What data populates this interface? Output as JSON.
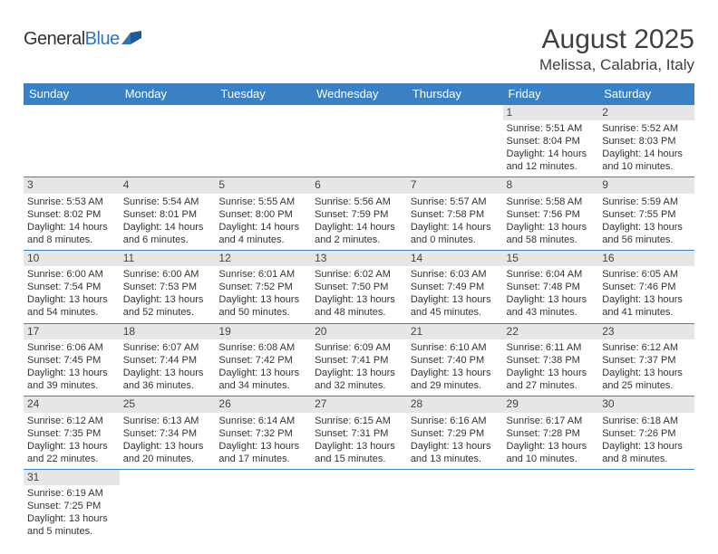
{
  "logo": {
    "text_part1": "General",
    "text_part2": "Blue"
  },
  "title": {
    "month_year": "August 2025",
    "location": "Melissa, Calabria, Italy"
  },
  "colors": {
    "header_bg": "#3a81c3",
    "header_text": "#ffffff",
    "daynum_bg": "#e6e6e6",
    "row_divider": "#3a81c3",
    "body_text": "#333333",
    "logo_blue": "#2f75b5"
  },
  "day_headers": [
    "Sunday",
    "Monday",
    "Tuesday",
    "Wednesday",
    "Thursday",
    "Friday",
    "Saturday"
  ],
  "weeks": [
    [
      null,
      null,
      null,
      null,
      null,
      {
        "num": "1",
        "sunrise": "Sunrise: 5:51 AM",
        "sunset": "Sunset: 8:04 PM",
        "daylight1": "Daylight: 14 hours",
        "daylight2": "and 12 minutes."
      },
      {
        "num": "2",
        "sunrise": "Sunrise: 5:52 AM",
        "sunset": "Sunset: 8:03 PM",
        "daylight1": "Daylight: 14 hours",
        "daylight2": "and 10 minutes."
      }
    ],
    [
      {
        "num": "3",
        "sunrise": "Sunrise: 5:53 AM",
        "sunset": "Sunset: 8:02 PM",
        "daylight1": "Daylight: 14 hours",
        "daylight2": "and 8 minutes."
      },
      {
        "num": "4",
        "sunrise": "Sunrise: 5:54 AM",
        "sunset": "Sunset: 8:01 PM",
        "daylight1": "Daylight: 14 hours",
        "daylight2": "and 6 minutes."
      },
      {
        "num": "5",
        "sunrise": "Sunrise: 5:55 AM",
        "sunset": "Sunset: 8:00 PM",
        "daylight1": "Daylight: 14 hours",
        "daylight2": "and 4 minutes."
      },
      {
        "num": "6",
        "sunrise": "Sunrise: 5:56 AM",
        "sunset": "Sunset: 7:59 PM",
        "daylight1": "Daylight: 14 hours",
        "daylight2": "and 2 minutes."
      },
      {
        "num": "7",
        "sunrise": "Sunrise: 5:57 AM",
        "sunset": "Sunset: 7:58 PM",
        "daylight1": "Daylight: 14 hours",
        "daylight2": "and 0 minutes."
      },
      {
        "num": "8",
        "sunrise": "Sunrise: 5:58 AM",
        "sunset": "Sunset: 7:56 PM",
        "daylight1": "Daylight: 13 hours",
        "daylight2": "and 58 minutes."
      },
      {
        "num": "9",
        "sunrise": "Sunrise: 5:59 AM",
        "sunset": "Sunset: 7:55 PM",
        "daylight1": "Daylight: 13 hours",
        "daylight2": "and 56 minutes."
      }
    ],
    [
      {
        "num": "10",
        "sunrise": "Sunrise: 6:00 AM",
        "sunset": "Sunset: 7:54 PM",
        "daylight1": "Daylight: 13 hours",
        "daylight2": "and 54 minutes."
      },
      {
        "num": "11",
        "sunrise": "Sunrise: 6:00 AM",
        "sunset": "Sunset: 7:53 PM",
        "daylight1": "Daylight: 13 hours",
        "daylight2": "and 52 minutes."
      },
      {
        "num": "12",
        "sunrise": "Sunrise: 6:01 AM",
        "sunset": "Sunset: 7:52 PM",
        "daylight1": "Daylight: 13 hours",
        "daylight2": "and 50 minutes."
      },
      {
        "num": "13",
        "sunrise": "Sunrise: 6:02 AM",
        "sunset": "Sunset: 7:50 PM",
        "daylight1": "Daylight: 13 hours",
        "daylight2": "and 48 minutes."
      },
      {
        "num": "14",
        "sunrise": "Sunrise: 6:03 AM",
        "sunset": "Sunset: 7:49 PM",
        "daylight1": "Daylight: 13 hours",
        "daylight2": "and 45 minutes."
      },
      {
        "num": "15",
        "sunrise": "Sunrise: 6:04 AM",
        "sunset": "Sunset: 7:48 PM",
        "daylight1": "Daylight: 13 hours",
        "daylight2": "and 43 minutes."
      },
      {
        "num": "16",
        "sunrise": "Sunrise: 6:05 AM",
        "sunset": "Sunset: 7:46 PM",
        "daylight1": "Daylight: 13 hours",
        "daylight2": "and 41 minutes."
      }
    ],
    [
      {
        "num": "17",
        "sunrise": "Sunrise: 6:06 AM",
        "sunset": "Sunset: 7:45 PM",
        "daylight1": "Daylight: 13 hours",
        "daylight2": "and 39 minutes."
      },
      {
        "num": "18",
        "sunrise": "Sunrise: 6:07 AM",
        "sunset": "Sunset: 7:44 PM",
        "daylight1": "Daylight: 13 hours",
        "daylight2": "and 36 minutes."
      },
      {
        "num": "19",
        "sunrise": "Sunrise: 6:08 AM",
        "sunset": "Sunset: 7:42 PM",
        "daylight1": "Daylight: 13 hours",
        "daylight2": "and 34 minutes."
      },
      {
        "num": "20",
        "sunrise": "Sunrise: 6:09 AM",
        "sunset": "Sunset: 7:41 PM",
        "daylight1": "Daylight: 13 hours",
        "daylight2": "and 32 minutes."
      },
      {
        "num": "21",
        "sunrise": "Sunrise: 6:10 AM",
        "sunset": "Sunset: 7:40 PM",
        "daylight1": "Daylight: 13 hours",
        "daylight2": "and 29 minutes."
      },
      {
        "num": "22",
        "sunrise": "Sunrise: 6:11 AM",
        "sunset": "Sunset: 7:38 PM",
        "daylight1": "Daylight: 13 hours",
        "daylight2": "and 27 minutes."
      },
      {
        "num": "23",
        "sunrise": "Sunrise: 6:12 AM",
        "sunset": "Sunset: 7:37 PM",
        "daylight1": "Daylight: 13 hours",
        "daylight2": "and 25 minutes."
      }
    ],
    [
      {
        "num": "24",
        "sunrise": "Sunrise: 6:12 AM",
        "sunset": "Sunset: 7:35 PM",
        "daylight1": "Daylight: 13 hours",
        "daylight2": "and 22 minutes."
      },
      {
        "num": "25",
        "sunrise": "Sunrise: 6:13 AM",
        "sunset": "Sunset: 7:34 PM",
        "daylight1": "Daylight: 13 hours",
        "daylight2": "and 20 minutes."
      },
      {
        "num": "26",
        "sunrise": "Sunrise: 6:14 AM",
        "sunset": "Sunset: 7:32 PM",
        "daylight1": "Daylight: 13 hours",
        "daylight2": "and 17 minutes."
      },
      {
        "num": "27",
        "sunrise": "Sunrise: 6:15 AM",
        "sunset": "Sunset: 7:31 PM",
        "daylight1": "Daylight: 13 hours",
        "daylight2": "and 15 minutes."
      },
      {
        "num": "28",
        "sunrise": "Sunrise: 6:16 AM",
        "sunset": "Sunset: 7:29 PM",
        "daylight1": "Daylight: 13 hours",
        "daylight2": "and 13 minutes."
      },
      {
        "num": "29",
        "sunrise": "Sunrise: 6:17 AM",
        "sunset": "Sunset: 7:28 PM",
        "daylight1": "Daylight: 13 hours",
        "daylight2": "and 10 minutes."
      },
      {
        "num": "30",
        "sunrise": "Sunrise: 6:18 AM",
        "sunset": "Sunset: 7:26 PM",
        "daylight1": "Daylight: 13 hours",
        "daylight2": "and 8 minutes."
      }
    ],
    [
      {
        "num": "31",
        "sunrise": "Sunrise: 6:19 AM",
        "sunset": "Sunset: 7:25 PM",
        "daylight1": "Daylight: 13 hours",
        "daylight2": "and 5 minutes."
      },
      null,
      null,
      null,
      null,
      null,
      null
    ]
  ]
}
